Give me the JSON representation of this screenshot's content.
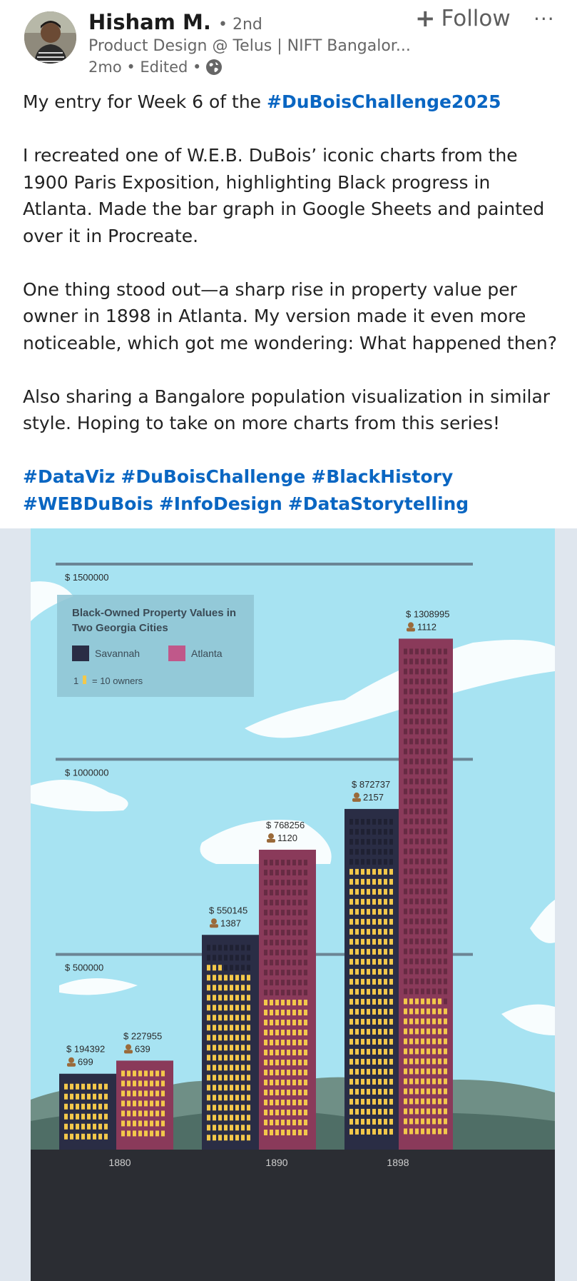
{
  "author": {
    "name": "Hisham M.",
    "degree": "• 2nd",
    "headline": "Product Design @ Telus | NIFT Bangalor...",
    "time": "2mo • Edited •"
  },
  "actions": {
    "follow_label": "Follow",
    "more_label": "···"
  },
  "post": {
    "line1_prefix": "My entry for Week 6 of the ",
    "line1_tag": "#DuBoisChallenge2025",
    "para2": "I recreated one of W.E.B. DuBois’ iconic charts from the 1900 Paris Exposition, highlighting Black progress in Atlanta. Made the bar graph in Google Sheets and painted over it in Procreate.",
    "para3": "One thing stood out—a sharp rise in property value per owner in 1898 in Atlanta. My version made it even more noticeable, which got me wondering: What happened then?",
    "para4": "Also sharing a Bangalore population visualization in similar style. Hoping to take on more charts from this series!",
    "hashtags": [
      "#DataViz",
      "#DuBoisChallenge",
      "#BlackHistory",
      "#WEBDuBois",
      "#InfoDesign",
      "#DataStorytelling"
    ]
  },
  "colors": {
    "link": "#0a66c2",
    "sky": "#a7e3f2",
    "savannah": "#2a2d45",
    "atlanta": "#8a3a5a",
    "window": "#f3c84a",
    "ground": "#2b2d33"
  },
  "chart_data": {
    "type": "bar",
    "title": "Black-Owned Property Values in Two Georgia Cities",
    "legend": [
      {
        "name": "Savannah",
        "color": "#2a2d45"
      },
      {
        "name": "Atlanta",
        "color": "#c0588a"
      }
    ],
    "legend_note": "1 = 10 owners",
    "categories": [
      "1880",
      "1890",
      "1898"
    ],
    "series": [
      {
        "name": "Savannah",
        "values": [
          194392,
          550145,
          872737
        ],
        "owners": [
          699,
          1387,
          2157
        ]
      },
      {
        "name": "Atlanta",
        "values": [
          227955,
          768256,
          1308995
        ],
        "owners": [
          639,
          1120,
          1112
        ]
      }
    ],
    "ytick_labels": [
      "$ 1500000",
      "$ 1000000",
      "$ 500000"
    ],
    "ylim": [
      0,
      1500000
    ],
    "grid": true,
    "legend_position": "top-left"
  }
}
